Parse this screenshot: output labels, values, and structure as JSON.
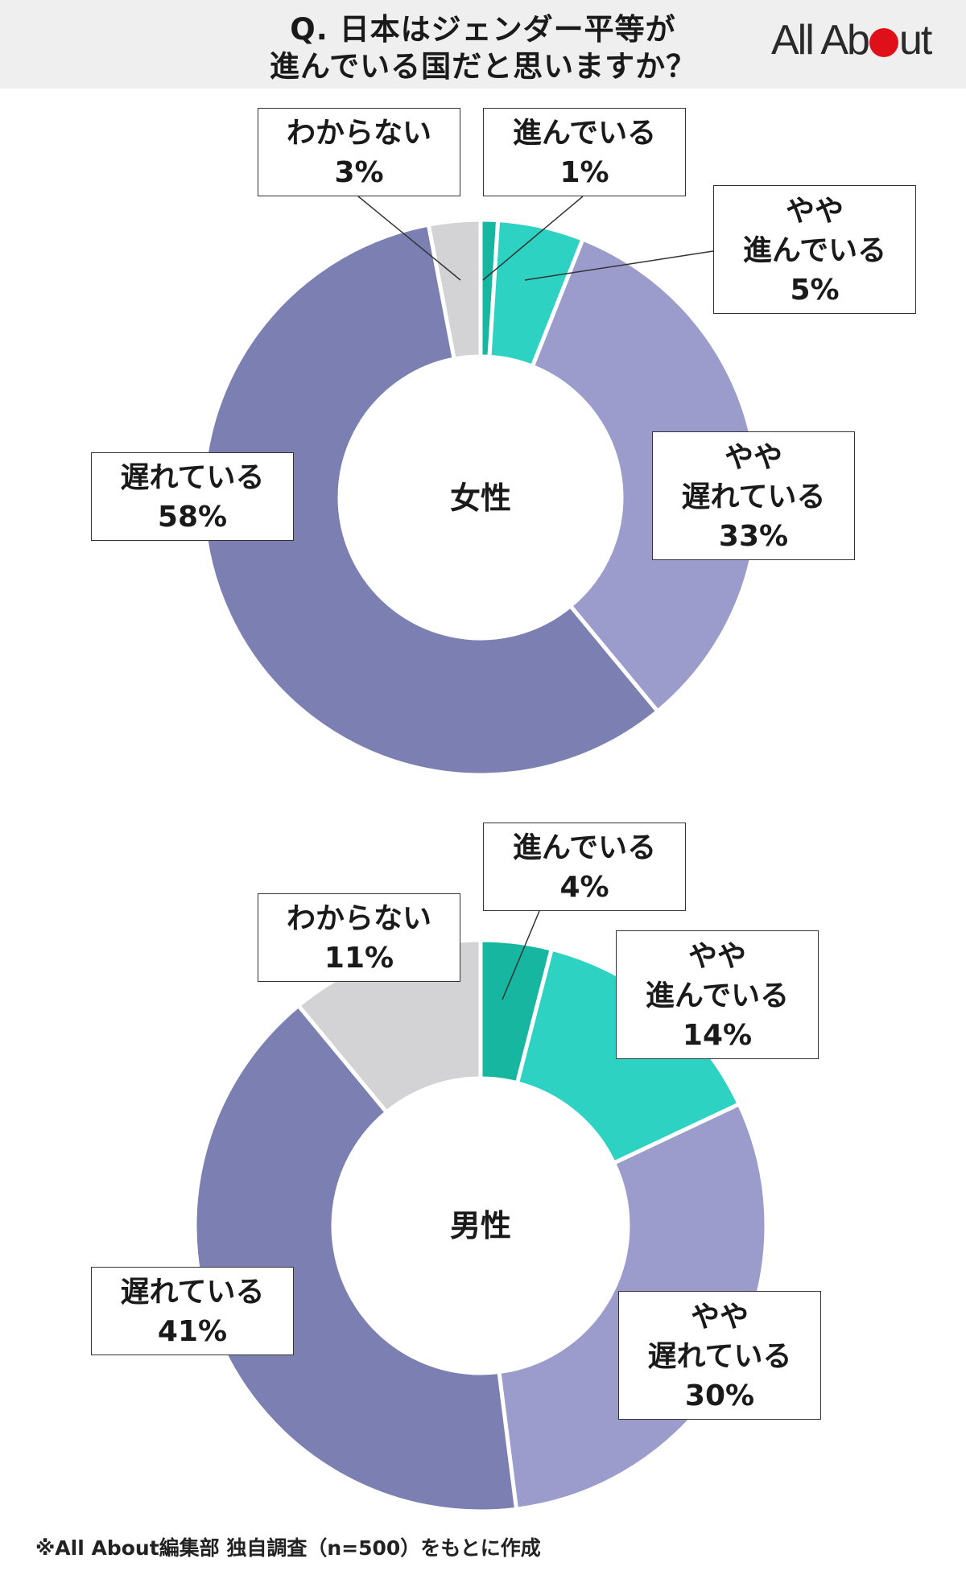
{
  "header": {
    "title_line1": "Q. 日本はジェンダー平等が",
    "title_line2": "進んでいる国だと思いますか？",
    "logo": {
      "text_before": "All Ab",
      "text_after": "ut",
      "dot_color": "#e0101a"
    }
  },
  "colors": {
    "進んでいる": "#17b6a0",
    "やや進んでいる": "#2dd2c2",
    "やや遅れている": "#9b9ccc",
    "遅れている": "#7b7fb2",
    "わからない": "#d3d2d4"
  },
  "chart_data": [
    {
      "type": "pie",
      "donut": true,
      "center_label": "女性",
      "categories": [
        "進んでいる",
        "やや進んでいる",
        "やや遅れている",
        "遅れている",
        "わからない"
      ],
      "values": [
        1,
        5,
        33,
        58,
        3
      ],
      "labels": [
        [
          "進んでいる",
          "1%"
        ],
        [
          "やや",
          "進んでいる",
          "5%"
        ],
        [
          "やや",
          "遅れている",
          "33%"
        ],
        [
          "遅れている",
          "58%"
        ],
        [
          "わからない",
          "3%"
        ]
      ]
    },
    {
      "type": "pie",
      "donut": true,
      "center_label": "男性",
      "categories": [
        "進んでいる",
        "やや進んでいる",
        "やや遅れている",
        "遅れている",
        "わからない"
      ],
      "values": [
        4,
        14,
        30,
        41,
        11
      ],
      "labels": [
        [
          "進んでいる",
          "4%"
        ],
        [
          "やや",
          "進んでいる",
          "14%"
        ],
        [
          "やや",
          "遅れている",
          "30%"
        ],
        [
          "遅れている",
          "41%"
        ],
        [
          "わからない",
          "11%"
        ]
      ]
    }
  ],
  "footnote": "※All About編集部 独自調査（n=500）をもとに作成"
}
